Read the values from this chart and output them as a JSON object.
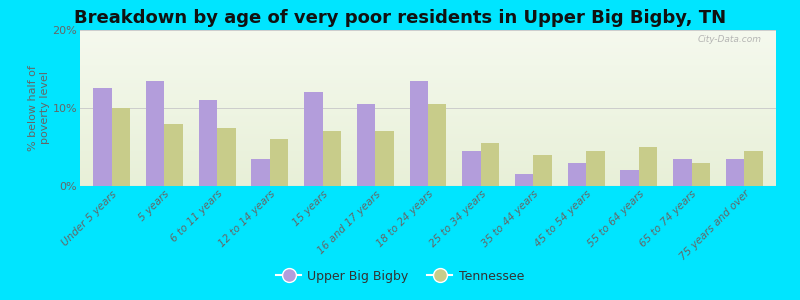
{
  "title": "Breakdown by age of very poor residents in Upper Big Bigby, TN",
  "ylabel": "% below half of\npoverty level",
  "categories": [
    "Under 5 years",
    "5 years",
    "6 to 11 years",
    "12 to 14 years",
    "15 years",
    "16 and 17 years",
    "18 to 24 years",
    "25 to 34 years",
    "35 to 44 years",
    "45 to 54 years",
    "55 to 64 years",
    "65 to 74 years",
    "75 years and over"
  ],
  "upper_big_bigby": [
    12.5,
    13.5,
    11.0,
    3.5,
    12.0,
    10.5,
    13.5,
    4.5,
    1.5,
    3.0,
    2.0,
    3.5,
    3.5
  ],
  "tennessee": [
    10.0,
    8.0,
    7.5,
    6.0,
    7.0,
    7.0,
    10.5,
    5.5,
    4.0,
    4.5,
    5.0,
    3.0,
    4.5
  ],
  "bar_color_ubigby": "#b39ddb",
  "bar_color_tn": "#c8cc8a",
  "background_outer": "#00e5ff",
  "ylim": [
    0,
    20
  ],
  "yticks": [
    0,
    10,
    20
  ],
  "ytick_labels": [
    "0%",
    "10%",
    "20%"
  ],
  "title_fontsize": 13,
  "label_fontsize": 7.5,
  "watermark": "City-Data.com",
  "legend_labels": [
    "Upper Big Bigby",
    "Tennessee"
  ],
  "bar_width": 0.35
}
